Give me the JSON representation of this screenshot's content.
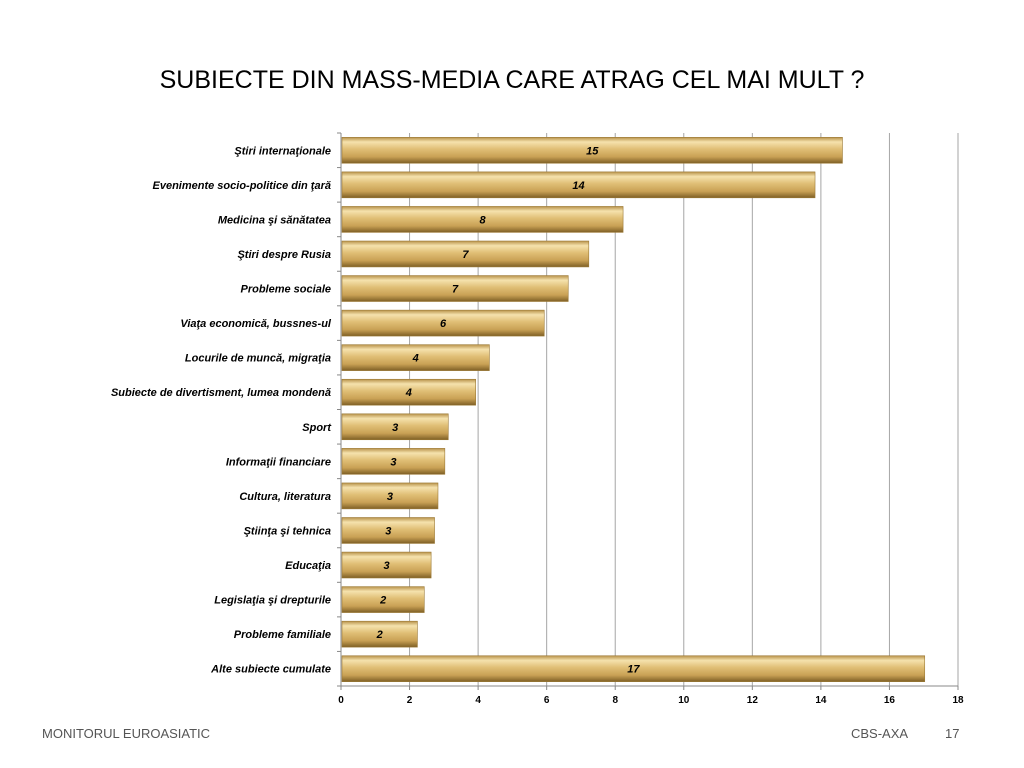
{
  "slide": {
    "title": "SUBIECTE DIN MASS-MEDIA CARE ATRAG CEL MAI MULT ?",
    "footer_left": "MONITORUL  EUROASIATIC",
    "footer_right": "CBS-AXA",
    "page_number": "17"
  },
  "chart_data": {
    "type": "bar",
    "orientation": "horizontal",
    "title": "SUBIECTE DIN MASS-MEDIA CARE ATRAG CEL MAI MULT ?",
    "categories": [
      "Ştiri internaţionale",
      "Evenimente socio-politice din ţară",
      "Medicina şi sănătatea",
      "Ştiri despre Rusia",
      "Probleme sociale",
      "Viaţa economică, bussnes-ul",
      "Locurile de muncă, migraţia",
      "Subiecte de divertisment, lumea mondenă",
      "Sport",
      "Informaţii financiare",
      "Cultura, literatura",
      "Ştiinţa şi tehnica",
      "Educaţia",
      "Legislaţia şi drepturile",
      "Probleme familiale",
      "Alte subiecte cumulate"
    ],
    "values": [
      14.6,
      13.8,
      8.2,
      7.2,
      6.6,
      5.9,
      4.3,
      3.9,
      3.1,
      3.0,
      2.8,
      2.7,
      2.6,
      2.4,
      2.2,
      17.0
    ],
    "data_labels": [
      "15",
      "14",
      "8",
      "7",
      "7",
      "6",
      "4",
      "4",
      "3",
      "3",
      "3",
      "3",
      "3",
      "2",
      "2",
      "17"
    ],
    "xlim": [
      0,
      18
    ],
    "xticks": [
      "0",
      "2",
      "4",
      "6",
      "8",
      "10",
      "12",
      "14",
      "16",
      "18"
    ],
    "grid": true,
    "bar_color": "#d4ae5a",
    "bar_highlight": "#f5e0a8",
    "bar_shadow": "#8a6a2a"
  }
}
